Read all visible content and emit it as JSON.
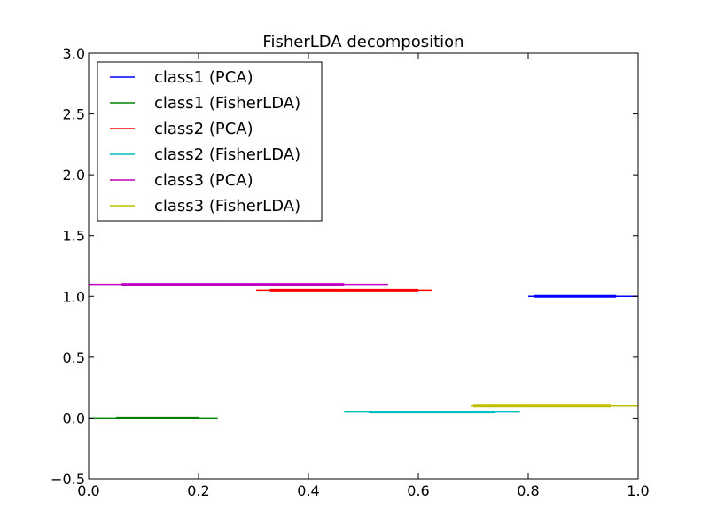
{
  "chart_data": {
    "type": "line",
    "title": "FisherLDA decomposition",
    "xlabel": "",
    "ylabel": "",
    "xlim": [
      0.0,
      1.0
    ],
    "ylim": [
      -0.5,
      3.0
    ],
    "x_ticks": [
      "0.0",
      "0.2",
      "0.4",
      "0.6",
      "0.8",
      "1.0"
    ],
    "y_ticks": [
      "−0.5",
      "0.0",
      "0.5",
      "1.0",
      "1.5",
      "2.0",
      "2.5",
      "3.0"
    ],
    "grid": false,
    "legend_position": "top-left",
    "series": [
      {
        "name": "class1 (PCA)",
        "color": "#0000ff",
        "y": 1.0,
        "x_range": [
          0.8,
          1.0
        ],
        "dense_range": [
          0.81,
          0.96
        ]
      },
      {
        "name": "class1 (FisherLDA)",
        "color": "#008000",
        "y": 0.0,
        "x_range": [
          0.0,
          0.235
        ],
        "dense_range": [
          0.05,
          0.2
        ]
      },
      {
        "name": "class2 (PCA)",
        "color": "#ff0000",
        "y": 1.05,
        "x_range": [
          0.305,
          0.625
        ],
        "dense_range": [
          0.33,
          0.6
        ]
      },
      {
        "name": "class2 (FisherLDA)",
        "color": "#00bfbf",
        "y": 0.05,
        "x_range": [
          0.465,
          0.785
        ],
        "dense_range": [
          0.51,
          0.74
        ]
      },
      {
        "name": "class3 (PCA)",
        "color": "#bf00bf",
        "y": 1.1,
        "x_range": [
          0.0,
          0.545
        ],
        "dense_range": [
          0.06,
          0.465
        ]
      },
      {
        "name": "class3 (FisherLDA)",
        "color": "#bfbf00",
        "y": 0.1,
        "x_range": [
          0.695,
          1.0
        ],
        "dense_range": [
          0.7,
          0.95
        ]
      }
    ]
  }
}
